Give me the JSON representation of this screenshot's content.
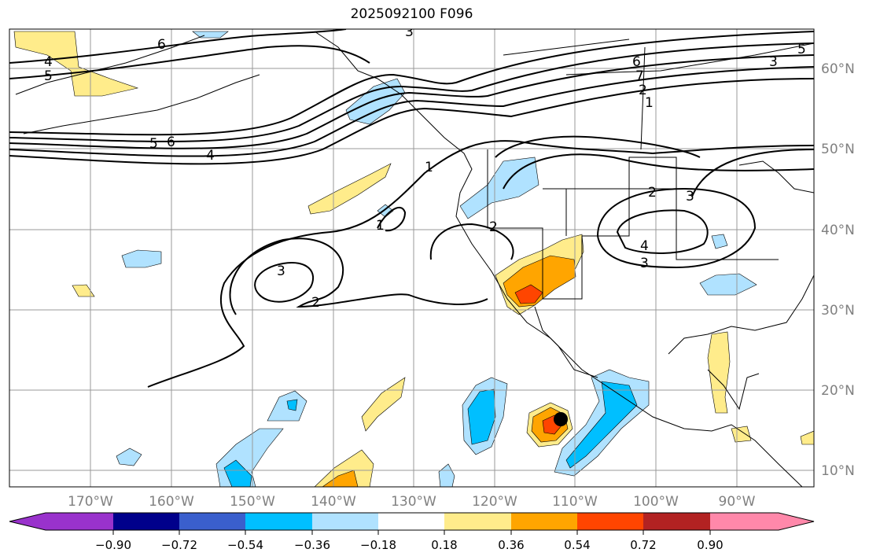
{
  "title": "2025092100 F096",
  "colors": {
    "purple": "#9932CC",
    "navy": "#00008B",
    "royalblue": "#3A5FCD",
    "deepsky": "#00BFFF",
    "lightblue": "#B0E2FF",
    "white": "#FFFFFF",
    "yellow": "#FFEC8B",
    "orange": "#FFA500",
    "orangered": "#FF4500",
    "firebrick": "#B22222",
    "pink": "#FF88AA"
  },
  "lon_labels": [
    "170°W",
    "160°W",
    "150°W",
    "140°W",
    "130°W",
    "120°W",
    "110°W",
    "100°W",
    "90°W"
  ],
  "lat_labels": [
    "60°N",
    "50°N",
    "40°N",
    "30°N",
    "20°N",
    "10°N"
  ],
  "colorbar": {
    "ticks": [
      "−0.90",
      "−0.72",
      "−0.54",
      "−0.36",
      "−0.18",
      "0.18",
      "0.36",
      "0.54",
      "0.72",
      "0.90"
    ]
  },
  "contour_labels": [
    "4",
    "5",
    "6",
    "5",
    "6",
    "4",
    "1",
    "1",
    "2",
    "3",
    "2",
    "2",
    "3",
    "4",
    "3",
    "6",
    "7",
    "2",
    "1",
    "3",
    "5",
    "3"
  ]
}
